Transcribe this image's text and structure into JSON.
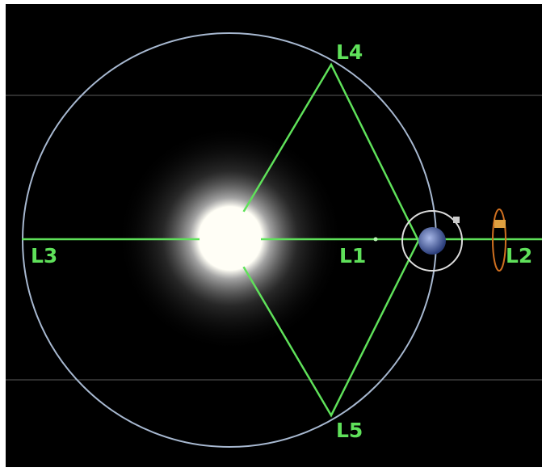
{
  "labels": {
    "l4": "L4",
    "l3": "L3",
    "l1": "L1",
    "l2": "L2",
    "l5": "L5"
  }
}
